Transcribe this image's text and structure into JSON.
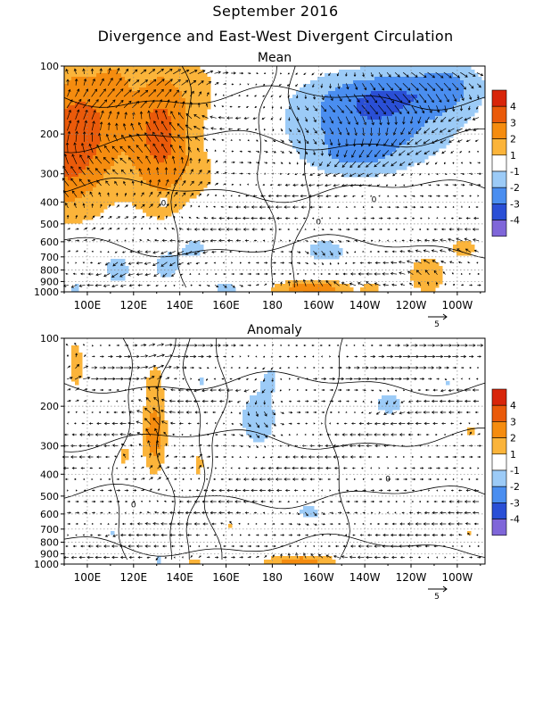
{
  "figure": {
    "title": "September 2016",
    "subtitle": "Divergence and East-West Divergent Circulation"
  },
  "colors": {
    "levels": [
      "#7f66d9",
      "#2a4fd6",
      "#4a8ef0",
      "#9ccbf7",
      "#ffffff",
      "#fbb43a",
      "#f58c0f",
      "#ea5a0a",
      "#d8250a"
    ],
    "contour": "#000000",
    "grid": "#8c8c8c"
  },
  "chart_data": [
    {
      "type": "heatmap",
      "title": "Mean",
      "x_ticks": [
        "100E",
        "120E",
        "140E",
        "160E",
        "180",
        "160W",
        "140W",
        "120W",
        "100W"
      ],
      "x_tick_lon": [
        100,
        120,
        140,
        160,
        180,
        200,
        220,
        240,
        260
      ],
      "xlim": [
        90,
        272
      ],
      "y_ticks": [
        "100",
        "200",
        "300",
        "400",
        "500",
        "600",
        "700",
        "800",
        "900",
        "1000"
      ],
      "y_tick_p": [
        100,
        200,
        300,
        400,
        500,
        600,
        700,
        800,
        900,
        1000
      ],
      "ylim": [
        100,
        1000
      ],
      "y_scale": "log",
      "grid": true,
      "colorbar": {
        "labels": [
          "4",
          "3",
          "2",
          "1",
          "-1",
          "-2",
          "-3",
          "-4"
        ],
        "bounds": [
          -5,
          -4,
          -3,
          -2,
          -1,
          1,
          2,
          3,
          4,
          5
        ]
      },
      "vector_ref": "5",
      "contour_label": "0",
      "blobs": [
        {
          "lon": 97,
          "p": 200,
          "sx": 13,
          "sy": 0.55,
          "amp": 3.5
        },
        {
          "lon": 112,
          "p": 125,
          "sx": 5,
          "sy": 0.22,
          "amp": 1.2
        },
        {
          "lon": 132,
          "p": 200,
          "sx": 10,
          "sy": 0.55,
          "amp": 3.3
        },
        {
          "lon": 150,
          "p": 130,
          "sx": 6,
          "sy": 0.25,
          "amp": 1.0
        },
        {
          "lon": 90,
          "p": 290,
          "sx": 5,
          "sy": 0.35,
          "amp": 0.8
        },
        {
          "lon": 150,
          "p": 300,
          "sx": 7,
          "sy": 0.2,
          "amp": 0.9
        },
        {
          "lon": 222,
          "p": 185,
          "sx": 26,
          "sy": 0.32,
          "amp": -2.6
        },
        {
          "lon": 230,
          "p": 130,
          "sx": 22,
          "sy": 0.18,
          "amp": -1.6
        },
        {
          "lon": 257,
          "p": 120,
          "sx": 11,
          "sy": 0.2,
          "amp": -1.4
        },
        {
          "lon": 215,
          "p": 255,
          "sx": 12,
          "sy": 0.12,
          "amp": -0.9
        },
        {
          "lon": 113,
          "p": 790,
          "sx": 5,
          "sy": 0.13,
          "amp": -1.6
        },
        {
          "lon": 134,
          "p": 760,
          "sx": 5,
          "sy": 0.14,
          "amp": -1.7
        },
        {
          "lon": 146,
          "p": 640,
          "sx": 5,
          "sy": 0.1,
          "amp": -1.4
        },
        {
          "lon": 203,
          "p": 660,
          "sx": 7,
          "sy": 0.1,
          "amp": -1.6
        },
        {
          "lon": 94,
          "p": 560,
          "sx": 3,
          "sy": 0.05,
          "amp": -1.2
        },
        {
          "lon": 95,
          "p": 960,
          "sx": 3,
          "sy": 0.05,
          "amp": -1.2
        },
        {
          "lon": 160,
          "p": 960,
          "sx": 6,
          "sy": 0.05,
          "amp": -1.3
        },
        {
          "lon": 197,
          "p": 965,
          "sx": 12,
          "sy": 0.06,
          "amp": 2.8
        },
        {
          "lon": 223,
          "p": 960,
          "sx": 3,
          "sy": 0.05,
          "amp": 1.5
        },
        {
          "lon": 247,
          "p": 840,
          "sx": 7,
          "sy": 0.16,
          "amp": 1.7
        },
        {
          "lon": 263,
          "p": 640,
          "sx": 5,
          "sy": 0.08,
          "amp": 1.4
        }
      ]
    },
    {
      "type": "heatmap",
      "title": "Anomaly",
      "x_ticks": [
        "100E",
        "120E",
        "140E",
        "160E",
        "180",
        "160W",
        "140W",
        "120W",
        "100W"
      ],
      "x_tick_lon": [
        100,
        120,
        140,
        160,
        180,
        200,
        220,
        240,
        260
      ],
      "xlim": [
        90,
        272
      ],
      "y_ticks": [
        "100",
        "200",
        "300",
        "400",
        "500",
        "600",
        "700",
        "800",
        "900",
        "1000"
      ],
      "y_tick_p": [
        100,
        200,
        300,
        400,
        500,
        600,
        700,
        800,
        900,
        1000
      ],
      "ylim": [
        100,
        1000
      ],
      "y_scale": "log",
      "grid": true,
      "colorbar": {
        "labels": [
          "4",
          "3",
          "2",
          "1",
          "-1",
          "-2",
          "-3",
          "-4"
        ],
        "bounds": [
          -5,
          -4,
          -3,
          -2,
          -1,
          1,
          2,
          3,
          4,
          5
        ]
      },
      "vector_ref": "5",
      "contour_label": "0",
      "blobs": [
        {
          "lon": 95,
          "p": 130,
          "sx": 3,
          "sy": 0.25,
          "amp": 1.4
        },
        {
          "lon": 129,
          "p": 230,
          "sx": 4,
          "sy": 0.5,
          "amp": 1.8
        },
        {
          "lon": 129,
          "p": 275,
          "sx": 3,
          "sy": 0.15,
          "amp": 1.2
        },
        {
          "lon": 116,
          "p": 330,
          "sx": 2,
          "sy": 0.1,
          "amp": 1.3
        },
        {
          "lon": 148,
          "p": 360,
          "sx": 2,
          "sy": 0.12,
          "amp": 1.3
        },
        {
          "lon": 162,
          "p": 680,
          "sx": 2,
          "sy": 0.05,
          "amp": 1.2
        },
        {
          "lon": 266,
          "p": 260,
          "sx": 2,
          "sy": 0.05,
          "amp": 1.3
        },
        {
          "lon": 265,
          "p": 720,
          "sx": 2,
          "sy": 0.04,
          "amp": 1.2
        },
        {
          "lon": 192,
          "p": 970,
          "sx": 11,
          "sy": 0.05,
          "amp": 2.5
        },
        {
          "lon": 146,
          "p": 975,
          "sx": 3,
          "sy": 0.04,
          "amp": 1.4
        },
        {
          "lon": 174,
          "p": 225,
          "sx": 6,
          "sy": 0.22,
          "amp": -1.8
        },
        {
          "lon": 179,
          "p": 150,
          "sx": 3,
          "sy": 0.12,
          "amp": -1.1
        },
        {
          "lon": 230,
          "p": 195,
          "sx": 6,
          "sy": 0.1,
          "amp": -1.4
        },
        {
          "lon": 150,
          "p": 155,
          "sx": 2,
          "sy": 0.08,
          "amp": -1.1
        },
        {
          "lon": 256,
          "p": 160,
          "sx": 2,
          "sy": 0.05,
          "amp": -1.1
        },
        {
          "lon": 196,
          "p": 590,
          "sx": 5,
          "sy": 0.08,
          "amp": -1.3
        },
        {
          "lon": 111,
          "p": 720,
          "sx": 2,
          "sy": 0.04,
          "amp": -1.2
        },
        {
          "lon": 131,
          "p": 950,
          "sx": 2,
          "sy": 0.05,
          "amp": -1.3
        },
        {
          "lon": 93,
          "p": 990,
          "sx": 2,
          "sy": 0.03,
          "amp": -1.1
        }
      ]
    }
  ]
}
